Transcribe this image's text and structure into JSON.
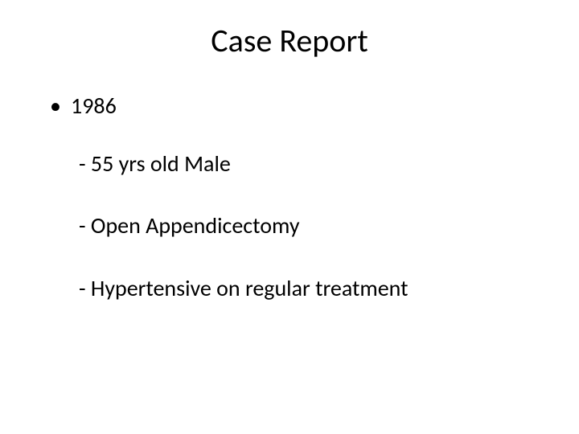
{
  "title": "Case Report",
  "bullets": {
    "year": "1986",
    "sub": [
      "- 55 yrs old Male",
      "- Open Appendicectomy",
      "- Hypertensive on regular treatment"
    ]
  },
  "colors": {
    "background": "#ffffff",
    "text": "#000000"
  },
  "typography": {
    "title_fontsize": 40,
    "body_fontsize": 28,
    "font_family": "Calibri"
  }
}
